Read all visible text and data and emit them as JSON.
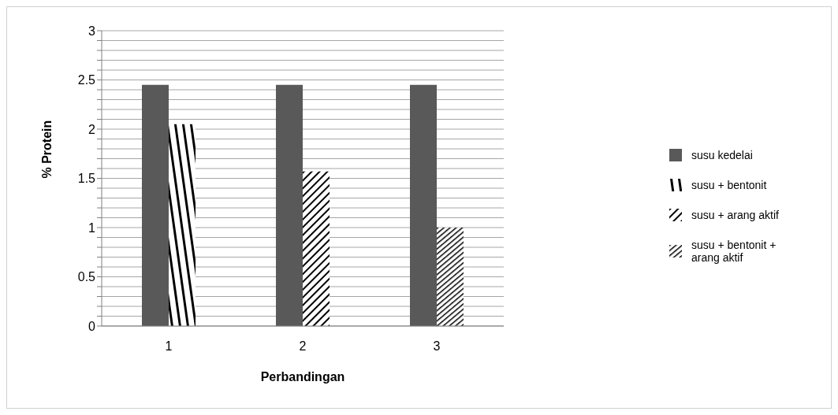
{
  "chart_data": {
    "type": "bar",
    "xlabel": "Perbandingan",
    "ylabel": "% Protein",
    "categories": [
      "1",
      "2",
      "3"
    ],
    "series": [
      {
        "name": "susu kedelai",
        "color": "#595959",
        "values": [
          2.45,
          2.45,
          2.45
        ]
      },
      {
        "name": "susu + bentonit",
        "color": "#000000",
        "values": [
          2.05,
          null,
          null
        ]
      },
      {
        "name": "susu + arang aktif",
        "color": "#000000",
        "values": [
          null,
          1.57,
          null
        ]
      },
      {
        "name": "susu + bentonit + arang aktif",
        "color": "#000000",
        "values": [
          null,
          null,
          1.0
        ]
      }
    ],
    "ylim": [
      0,
      3
    ],
    "yticks": [
      0,
      {
        "value": 0.1,
        "label": null
      },
      {
        "value": 0.2,
        "label": null
      },
      {
        "value": 0.3,
        "label": null
      },
      {
        "value": 0.4,
        "label": null
      },
      0.5,
      {
        "value": 0.6,
        "label": null
      },
      {
        "value": 0.7,
        "label": null
      },
      {
        "value": 0.8,
        "label": null
      },
      {
        "value": 0.9,
        "label": null
      },
      1,
      {
        "value": 1.1,
        "label": null
      },
      {
        "value": 1.2,
        "label": null
      },
      {
        "value": 1.3,
        "label": null
      },
      {
        "value": 1.4,
        "label": null
      },
      1.5,
      {
        "value": 1.6,
        "label": null
      },
      {
        "value": 1.7,
        "label": null
      },
      {
        "value": 1.8,
        "label": null
      },
      {
        "value": 1.9,
        "label": null
      },
      2,
      {
        "value": 2.1,
        "label": null
      },
      {
        "value": 2.2,
        "label": null
      },
      {
        "value": 2.3,
        "label": null
      },
      {
        "value": 2.4,
        "label": null
      },
      2.5,
      {
        "value": 2.6,
        "label": null
      },
      {
        "value": 2.7,
        "label": null
      },
      {
        "value": 2.8,
        "label": null
      },
      {
        "value": 2.9,
        "label": null
      },
      3
    ],
    "grid": "y",
    "legend": "right"
  }
}
